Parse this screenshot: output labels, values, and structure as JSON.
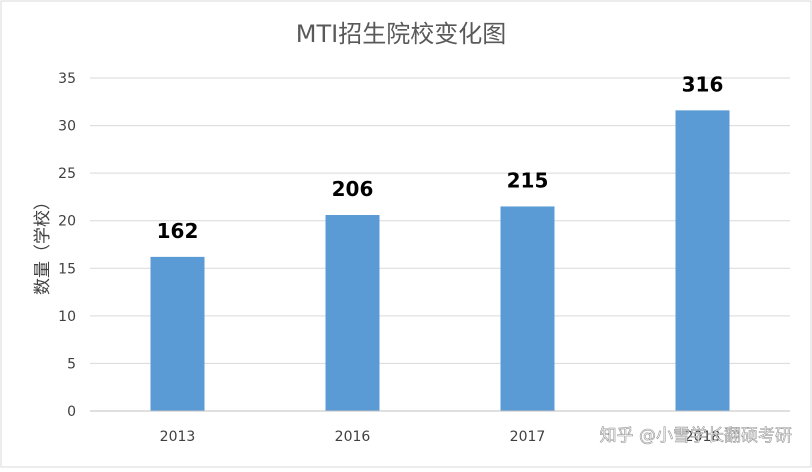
{
  "chart_data": {
    "type": "bar",
    "title": "MTI招生院校变化图",
    "ylabel": "数量（学校）",
    "xlabel": "",
    "categories": [
      "2013",
      "2016",
      "2017",
      "2018"
    ],
    "values": [
      16.2,
      20.6,
      21.5,
      31.6
    ],
    "data_labels": [
      "162",
      "206",
      "215",
      "316"
    ],
    "yticks": [
      "0",
      "5",
      "10",
      "15",
      "20",
      "25",
      "30",
      "35"
    ],
    "ylim": [
      0,
      35
    ],
    "grid": true,
    "legend": "none",
    "bar_color": "#5B9BD5"
  },
  "watermark": "知乎 @小雪学长翻硕考研"
}
